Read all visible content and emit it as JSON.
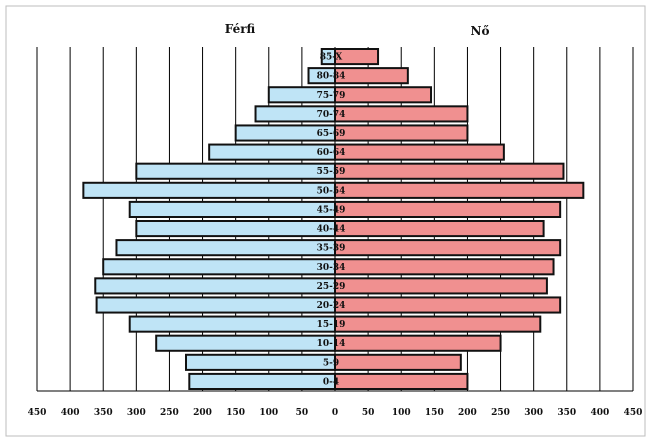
{
  "chart_data": {
    "type": "bar",
    "subtype": "population-pyramid",
    "title": "",
    "xlabel": "",
    "ylabel": "",
    "legend": {
      "left": "Férfi",
      "right": "Nő",
      "placement": "top"
    },
    "categories": [
      "0-4",
      "5-9",
      "10-14",
      "15-19",
      "20-24",
      "25-29",
      "30-34",
      "35-39",
      "40-44",
      "45-49",
      "50-54",
      "55-59",
      "60-64",
      "65-69",
      "70-74",
      "75-79",
      "80-84",
      "85-X"
    ],
    "series": [
      {
        "name": "Férfi",
        "side": "left",
        "color": "#bfe4f6",
        "values": [
          220,
          225,
          270,
          310,
          360,
          362,
          350,
          330,
          300,
          310,
          380,
          300,
          190,
          150,
          120,
          100,
          40,
          20
        ]
      },
      {
        "name": "Nő",
        "side": "right",
        "color": "#f09090",
        "values": [
          200,
          190,
          250,
          310,
          340,
          320,
          330,
          340,
          315,
          340,
          375,
          345,
          255,
          200,
          200,
          145,
          110,
          65
        ]
      }
    ],
    "xlim": [
      -450,
      450
    ],
    "xticks": [
      450,
      400,
      350,
      300,
      250,
      200,
      150,
      100,
      50,
      0,
      50,
      100,
      150,
      200,
      250,
      300,
      350,
      400,
      450
    ],
    "grid": "vertical",
    "colors": {
      "male": "#bfe4f6",
      "female": "#f09090",
      "outline": "#111111",
      "grid": "#000000"
    }
  }
}
